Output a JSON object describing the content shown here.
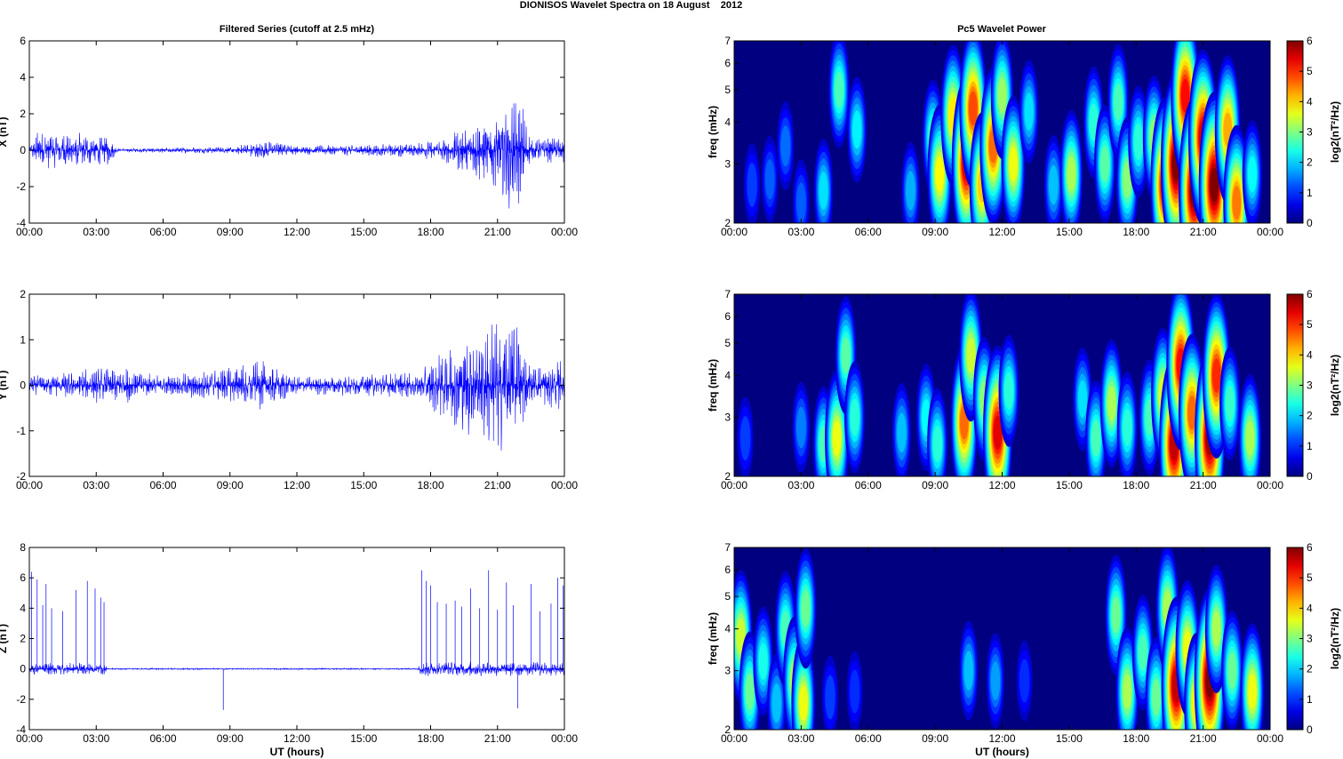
{
  "figure": {
    "suptitle": "DIONISOS Wavelet Spectra on 18 August    2012",
    "left_title": "Filtered Series (cutoff at 2.5 mHz)",
    "right_title": "Pc5 Wavelet Power"
  },
  "chart_data": [
    {
      "type": "line",
      "component": "X",
      "title": "Filtered Series (cutoff at 2.5 mHz)",
      "xlabel": "",
      "ylabel": "X (nT)",
      "xlim": [
        0,
        24
      ],
      "ylim": [
        -4,
        6
      ],
      "x_ticks": [
        "00:00",
        "03:00",
        "06:00",
        "09:00",
        "12:00",
        "15:00",
        "18:00",
        "21:00",
        "00:00"
      ],
      "y_ticks": [
        -4,
        -2,
        0,
        2,
        4,
        6
      ],
      "color": "#0000ff",
      "envelope": [
        {
          "t": 0.0,
          "amp": 0.12
        },
        {
          "t": 0.3,
          "amp": 1.1
        },
        {
          "t": 3.5,
          "amp": 0.9
        },
        {
          "t": 4.0,
          "amp": 0.1
        },
        {
          "t": 9.0,
          "amp": 0.2
        },
        {
          "t": 10.6,
          "amp": 0.55
        },
        {
          "t": 12.0,
          "amp": 0.25
        },
        {
          "t": 17.5,
          "amp": 0.4
        },
        {
          "t": 18.8,
          "amp": 0.8
        },
        {
          "t": 20.2,
          "amp": 2.0
        },
        {
          "t": 20.6,
          "amp": 1.8
        },
        {
          "t": 21.9,
          "amp": 3.8
        },
        {
          "t": 22.5,
          "amp": 0.6
        },
        {
          "t": 24.0,
          "amp": 0.8
        }
      ]
    },
    {
      "type": "line",
      "component": "Y",
      "xlabel": "",
      "ylabel": "Y (nT)",
      "xlim": [
        0,
        24
      ],
      "ylim": [
        -2,
        2
      ],
      "x_ticks": [
        "00:00",
        "03:00",
        "06:00",
        "09:00",
        "12:00",
        "15:00",
        "18:00",
        "21:00",
        "00:00"
      ],
      "y_ticks": [
        -2,
        -1,
        0,
        1,
        2
      ],
      "color": "#0000ff",
      "envelope": [
        {
          "t": 0.0,
          "amp": 0.2
        },
        {
          "t": 4.0,
          "amp": 0.45
        },
        {
          "t": 6.0,
          "amp": 0.2
        },
        {
          "t": 10.6,
          "amp": 0.55
        },
        {
          "t": 12.0,
          "amp": 0.2
        },
        {
          "t": 17.5,
          "amp": 0.3
        },
        {
          "t": 18.5,
          "amp": 0.75
        },
        {
          "t": 20.3,
          "amp": 1.4
        },
        {
          "t": 21.8,
          "amp": 1.6
        },
        {
          "t": 22.5,
          "amp": 0.4
        },
        {
          "t": 24.0,
          "amp": 0.6
        }
      ]
    },
    {
      "type": "line",
      "component": "Z",
      "xlabel": "UT (hours)",
      "ylabel": "Z (nT)",
      "xlim": [
        0,
        24
      ],
      "ylim": [
        -4,
        8
      ],
      "x_ticks": [
        "00:00",
        "03:00",
        "06:00",
        "09:00",
        "12:00",
        "15:00",
        "18:00",
        "21:00",
        "00:00"
      ],
      "y_ticks": [
        -4,
        -2,
        0,
        2,
        4,
        6,
        8
      ],
      "color": "#0000ff",
      "envelope": [
        {
          "t": 0.0,
          "amp": 0.4
        },
        {
          "t": 3.4,
          "amp": 0.4
        },
        {
          "t": 3.5,
          "amp": 0.05
        },
        {
          "t": 17.4,
          "amp": 0.05
        },
        {
          "t": 17.6,
          "amp": 0.5
        },
        {
          "t": 24.0,
          "amp": 0.5
        }
      ],
      "spikes": [
        {
          "t": 0.1,
          "v": 6.4
        },
        {
          "t": 0.35,
          "v": 5.9
        },
        {
          "t": 0.6,
          "v": 4.2
        },
        {
          "t": 0.75,
          "v": 5.6
        },
        {
          "t": 1.0,
          "v": 4.0
        },
        {
          "t": 1.5,
          "v": 3.8
        },
        {
          "t": 2.1,
          "v": 5.2
        },
        {
          "t": 2.6,
          "v": 5.8
        },
        {
          "t": 2.95,
          "v": 5.3
        },
        {
          "t": 3.2,
          "v": 4.7
        },
        {
          "t": 3.35,
          "v": 4.4
        },
        {
          "t": 8.7,
          "v": -2.7
        },
        {
          "t": 17.6,
          "v": 6.5
        },
        {
          "t": 17.8,
          "v": 5.8
        },
        {
          "t": 18.0,
          "v": 5.5
        },
        {
          "t": 18.3,
          "v": 4.4
        },
        {
          "t": 18.7,
          "v": 4.3
        },
        {
          "t": 19.1,
          "v": 4.5
        },
        {
          "t": 19.4,
          "v": 4.1
        },
        {
          "t": 19.8,
          "v": 5.3
        },
        {
          "t": 20.2,
          "v": 4.0
        },
        {
          "t": 20.6,
          "v": 6.5
        },
        {
          "t": 21.0,
          "v": 3.9
        },
        {
          "t": 21.4,
          "v": 5.7
        },
        {
          "t": 21.7,
          "v": 4.2
        },
        {
          "t": 21.9,
          "v": -2.6
        },
        {
          "t": 22.5,
          "v": 5.6
        },
        {
          "t": 22.9,
          "v": 3.8
        },
        {
          "t": 23.4,
          "v": 4.3
        },
        {
          "t": 23.7,
          "v": 6.0
        },
        {
          "t": 23.95,
          "v": 5.5
        }
      ]
    },
    {
      "type": "heatmap",
      "component": "X",
      "title": "Pc5 Wavelet Power",
      "xlabel": "",
      "ylabel": "freq (mHz)",
      "y_scale": "log",
      "xlim": [
        0,
        24
      ],
      "ylim": [
        2,
        7
      ],
      "x_ticks": [
        "00:00",
        "03:00",
        "06:00",
        "09:00",
        "12:00",
        "15:00",
        "18:00",
        "21:00",
        "00:00"
      ],
      "y_ticks": [
        2,
        3,
        4,
        5,
        6,
        7
      ],
      "colorbar": {
        "label": "log2(nT²/Hz)",
        "range": [
          0,
          6
        ],
        "ticks": [
          0,
          1,
          2,
          3,
          4,
          5,
          6
        ],
        "colormap": "jet"
      },
      "blobs": [
        {
          "t": 0.8,
          "f": 2.6,
          "p": 1.0
        },
        {
          "t": 1.6,
          "f": 2.7,
          "p": 1.2
        },
        {
          "t": 2.3,
          "f": 3.4,
          "p": 1.3
        },
        {
          "t": 3.0,
          "f": 2.3,
          "p": 1.2
        },
        {
          "t": 4.0,
          "f": 2.5,
          "p": 2.0
        },
        {
          "t": 4.7,
          "f": 5.0,
          "p": 2.6
        },
        {
          "t": 5.5,
          "f": 3.8,
          "p": 2.1
        },
        {
          "t": 7.9,
          "f": 2.5,
          "p": 1.7
        },
        {
          "t": 8.9,
          "f": 3.6,
          "p": 2.6
        },
        {
          "t": 9.2,
          "f": 2.8,
          "p": 3.7
        },
        {
          "t": 9.8,
          "f": 4.2,
          "p": 3.8
        },
        {
          "t": 10.4,
          "f": 3.0,
          "p": 5.4
        },
        {
          "t": 10.7,
          "f": 4.4,
          "p": 4.8
        },
        {
          "t": 11.1,
          "f": 2.6,
          "p": 4.0
        },
        {
          "t": 11.6,
          "f": 3.4,
          "p": 4.6
        },
        {
          "t": 12.0,
          "f": 4.8,
          "p": 3.1
        },
        {
          "t": 12.5,
          "f": 3.0,
          "p": 3.6
        },
        {
          "t": 13.2,
          "f": 4.3,
          "p": 2.0
        },
        {
          "t": 14.3,
          "f": 2.6,
          "p": 1.8
        },
        {
          "t": 15.1,
          "f": 2.8,
          "p": 3.2
        },
        {
          "t": 16.1,
          "f": 4.0,
          "p": 2.4
        },
        {
          "t": 16.6,
          "f": 3.0,
          "p": 2.7
        },
        {
          "t": 17.2,
          "f": 4.6,
          "p": 2.6
        },
        {
          "t": 17.6,
          "f": 2.7,
          "p": 3.0
        },
        {
          "t": 18.1,
          "f": 3.5,
          "p": 2.4
        },
        {
          "t": 18.8,
          "f": 3.6,
          "p": 3.0
        },
        {
          "t": 19.3,
          "f": 2.6,
          "p": 5.4
        },
        {
          "t": 19.8,
          "f": 3.0,
          "p": 6.0
        },
        {
          "t": 20.2,
          "f": 4.8,
          "p": 5.2
        },
        {
          "t": 20.6,
          "f": 2.5,
          "p": 6.0
        },
        {
          "t": 21.0,
          "f": 3.6,
          "p": 5.5
        },
        {
          "t": 21.5,
          "f": 2.6,
          "p": 6.0
        },
        {
          "t": 22.1,
          "f": 3.8,
          "p": 4.2
        },
        {
          "t": 22.5,
          "f": 2.3,
          "p": 4.5
        },
        {
          "t": 23.2,
          "f": 2.8,
          "p": 2.2
        }
      ]
    },
    {
      "type": "heatmap",
      "component": "Y",
      "xlabel": "",
      "ylabel": "freq (mHz)",
      "y_scale": "log",
      "xlim": [
        0,
        24
      ],
      "ylim": [
        2,
        7
      ],
      "x_ticks": [
        "00:00",
        "03:00",
        "06:00",
        "09:00",
        "12:00",
        "15:00",
        "18:00",
        "21:00",
        "00:00"
      ],
      "y_ticks": [
        2,
        3,
        4,
        5,
        6,
        7
      ],
      "colorbar": {
        "label": "log2(nT²/Hz)",
        "range": [
          0,
          6
        ],
        "ticks": [
          0,
          1,
          2,
          3,
          4,
          5,
          6
        ],
        "colormap": "jet"
      },
      "blobs": [
        {
          "t": 0.5,
          "f": 2.6,
          "p": 1.0
        },
        {
          "t": 3.0,
          "f": 2.8,
          "p": 1.4
        },
        {
          "t": 4.0,
          "f": 2.5,
          "p": 2.6
        },
        {
          "t": 4.6,
          "f": 2.6,
          "p": 3.6
        },
        {
          "t": 5.0,
          "f": 4.6,
          "p": 2.7
        },
        {
          "t": 5.4,
          "f": 3.0,
          "p": 2.4
        },
        {
          "t": 7.5,
          "f": 2.7,
          "p": 1.8
        },
        {
          "t": 8.6,
          "f": 3.0,
          "p": 2.2
        },
        {
          "t": 9.1,
          "f": 2.5,
          "p": 2.4
        },
        {
          "t": 10.3,
          "f": 2.9,
          "p": 4.6
        },
        {
          "t": 10.6,
          "f": 4.6,
          "p": 3.4
        },
        {
          "t": 11.2,
          "f": 3.4,
          "p": 3.0
        },
        {
          "t": 11.8,
          "f": 2.7,
          "p": 5.4
        },
        {
          "t": 12.3,
          "f": 3.6,
          "p": 2.4
        },
        {
          "t": 15.6,
          "f": 3.4,
          "p": 2.0
        },
        {
          "t": 16.2,
          "f": 2.6,
          "p": 2.6
        },
        {
          "t": 16.9,
          "f": 3.3,
          "p": 3.2
        },
        {
          "t": 17.6,
          "f": 2.8,
          "p": 2.4
        },
        {
          "t": 18.6,
          "f": 3.0,
          "p": 2.6
        },
        {
          "t": 19.2,
          "f": 3.5,
          "p": 3.5
        },
        {
          "t": 19.7,
          "f": 2.5,
          "p": 5.6
        },
        {
          "t": 20.0,
          "f": 4.3,
          "p": 5.2
        },
        {
          "t": 20.5,
          "f": 3.1,
          "p": 4.6
        },
        {
          "t": 21.3,
          "f": 2.6,
          "p": 5.8
        },
        {
          "t": 21.6,
          "f": 4.0,
          "p": 5.0
        },
        {
          "t": 22.2,
          "f": 3.3,
          "p": 2.5
        },
        {
          "t": 23.1,
          "f": 2.6,
          "p": 3.2
        }
      ]
    },
    {
      "type": "heatmap",
      "component": "Z",
      "xlabel": "UT (hours)",
      "ylabel": "freq (mHz)",
      "y_scale": "log",
      "xlim": [
        0,
        24
      ],
      "ylim": [
        2,
        7
      ],
      "x_ticks": [
        "00:00",
        "03:00",
        "06:00",
        "09:00",
        "12:00",
        "15:00",
        "18:00",
        "21:00",
        "00:00"
      ],
      "y_ticks": [
        2,
        3,
        4,
        5,
        6,
        7
      ],
      "colorbar": {
        "label": "log2(nT²/Hz)",
        "range": [
          0,
          6
        ],
        "ticks": [
          0,
          1,
          2,
          3,
          4,
          5,
          6
        ],
        "colormap": "jet"
      },
      "blobs": [
        {
          "t": 0.3,
          "f": 3.8,
          "p": 3.4
        },
        {
          "t": 0.7,
          "f": 2.6,
          "p": 2.8
        },
        {
          "t": 1.3,
          "f": 3.2,
          "p": 2.3
        },
        {
          "t": 1.9,
          "f": 2.4,
          "p": 1.8
        },
        {
          "t": 2.3,
          "f": 4.0,
          "p": 2.6
        },
        {
          "t": 2.7,
          "f": 2.8,
          "p": 3.2
        },
        {
          "t": 3.1,
          "f": 2.4,
          "p": 3.6
        },
        {
          "t": 3.2,
          "f": 4.6,
          "p": 2.8
        },
        {
          "t": 4.3,
          "f": 2.5,
          "p": 1.0
        },
        {
          "t": 5.4,
          "f": 2.6,
          "p": 0.9
        },
        {
          "t": 10.5,
          "f": 3.0,
          "p": 1.8
        },
        {
          "t": 11.7,
          "f": 2.8,
          "p": 1.6
        },
        {
          "t": 13.0,
          "f": 2.8,
          "p": 0.9
        },
        {
          "t": 17.1,
          "f": 4.4,
          "p": 2.8
        },
        {
          "t": 17.6,
          "f": 2.6,
          "p": 3.2
        },
        {
          "t": 18.3,
          "f": 3.4,
          "p": 2.6
        },
        {
          "t": 18.9,
          "f": 2.5,
          "p": 2.8
        },
        {
          "t": 19.4,
          "f": 4.6,
          "p": 3.2
        },
        {
          "t": 19.8,
          "f": 2.7,
          "p": 5.6
        },
        {
          "t": 20.3,
          "f": 3.5,
          "p": 3.6
        },
        {
          "t": 20.7,
          "f": 2.4,
          "p": 3.8
        },
        {
          "t": 21.3,
          "f": 2.8,
          "p": 6.0
        },
        {
          "t": 21.6,
          "f": 4.0,
          "p": 3.2
        },
        {
          "t": 22.3,
          "f": 3.0,
          "p": 2.8
        },
        {
          "t": 23.2,
          "f": 2.6,
          "p": 3.6
        }
      ]
    }
  ]
}
